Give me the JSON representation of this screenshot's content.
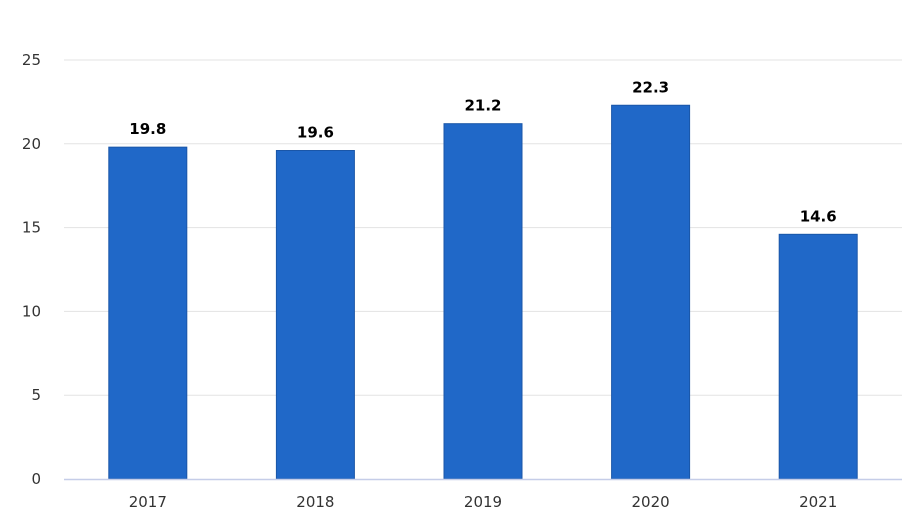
{
  "chart_data": {
    "type": "bar",
    "categories": [
      "2017",
      "2018",
      "2019",
      "2020",
      "2021"
    ],
    "values": [
      19.8,
      19.6,
      21.2,
      22.3,
      14.6
    ],
    "value_labels": [
      "19.8",
      "19.6",
      "21.2",
      "22.3",
      "14.6"
    ],
    "title": "",
    "xlabel": "",
    "ylabel": "",
    "ylim": [
      0,
      25
    ],
    "yticks": [
      0,
      5,
      10,
      15,
      20,
      25
    ],
    "grid": true,
    "legend": "none",
    "colors": {
      "bar": "#2068c8",
      "bar_border": "#1a56a8",
      "grid": "#e3e3e3",
      "axis": "#c5cde8",
      "tick_text": "#333333",
      "value_text": "#000000"
    }
  }
}
